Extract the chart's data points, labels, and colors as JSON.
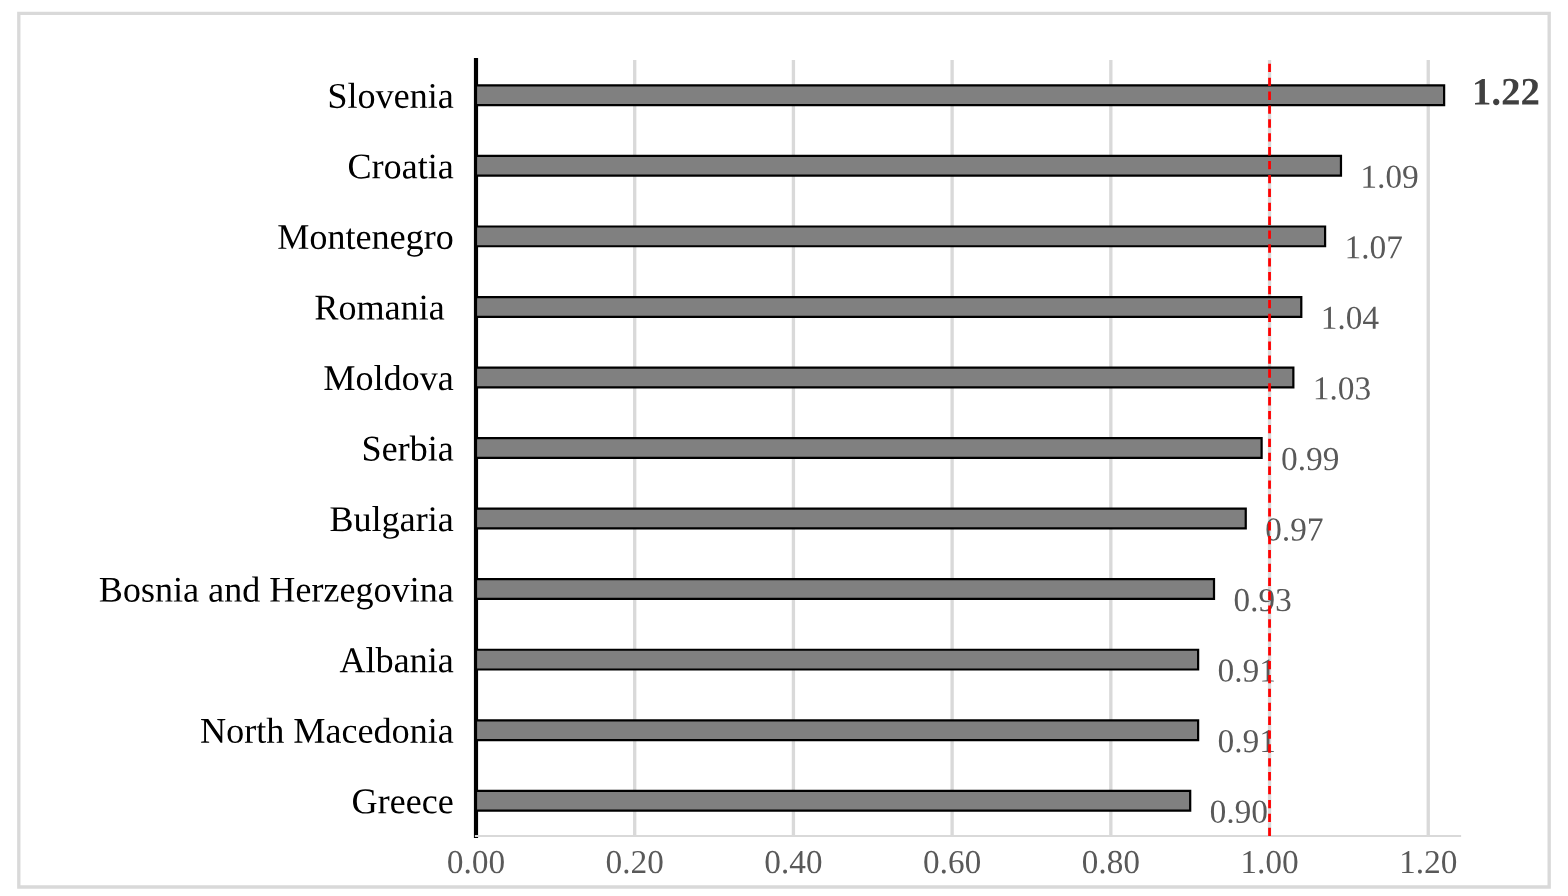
{
  "chart_data": {
    "type": "bar",
    "orientation": "horizontal",
    "categories": [
      "Slovenia",
      "Croatia",
      "Montenegro",
      "Romania ",
      "Moldova",
      "Serbia",
      "Bulgaria",
      "Bosnia and Herzegovina",
      "Albania",
      "North Macedonia",
      "Greece"
    ],
    "values": [
      1.22,
      1.09,
      1.07,
      1.04,
      1.03,
      0.99,
      0.97,
      0.93,
      0.91,
      0.91,
      0.9
    ],
    "value_labels": [
      "1.22",
      "1.09",
      "1.07",
      "1.04",
      "1.03",
      "0.99",
      "0.97",
      "0.93",
      "0.91",
      "0.91",
      "0.90"
    ],
    "color": "#808080",
    "xlim": [
      0,
      1.24
    ],
    "xticks": [
      {
        "value": 0,
        "label": "0.00"
      },
      {
        "value": 0.2,
        "label": "0.20"
      },
      {
        "value": 0.4,
        "label": "0.40"
      },
      {
        "value": 0.6,
        "label": "0.60"
      },
      {
        "value": 0.8,
        "label": "0.80"
      },
      {
        "value": 1.0,
        "label": "1.00"
      },
      {
        "value": 1.2,
        "label": "1.20"
      }
    ],
    "grid": "x",
    "ref_lines": [
      {
        "axis": "x",
        "value": 1.0,
        "color": "#ff0000",
        "line_style": "dashed"
      }
    ]
  }
}
